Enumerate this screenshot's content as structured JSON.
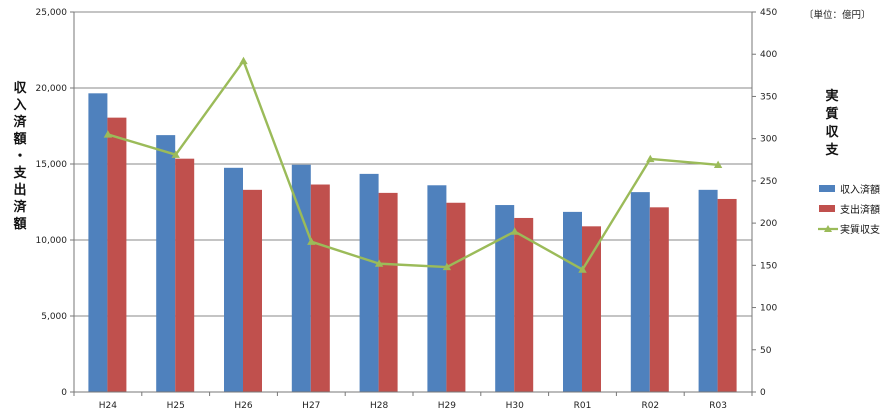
{
  "chart_data": {
    "type": "bar",
    "categories": [
      "H24",
      "H25",
      "H26",
      "H27",
      "H28",
      "H29",
      "H30",
      "R01",
      "R02",
      "R03"
    ],
    "series": [
      {
        "name": "収入済額",
        "kind": "bar",
        "axis": "left",
        "color": "#4f81bd",
        "values": [
          19650,
          16900,
          14750,
          14950,
          14350,
          13600,
          12300,
          11850,
          13150,
          13300
        ]
      },
      {
        "name": "支出済額",
        "kind": "bar",
        "axis": "left",
        "color": "#c0504d",
        "values": [
          18050,
          15350,
          13300,
          13650,
          13100,
          12450,
          11450,
          10900,
          12150,
          12700
        ]
      },
      {
        "name": "実質収支",
        "kind": "line",
        "axis": "right",
        "color": "#9bbb59",
        "marker": "triangle",
        "values": [
          305,
          281,
          392,
          178,
          152,
          148,
          190,
          145,
          276,
          269
        ]
      }
    ],
    "y_left": {
      "label": "収入済額・支出済額",
      "ylim": [
        0,
        25000
      ],
      "ticks": [
        "0",
        "5,000",
        "10,000",
        "15,000",
        "20,000",
        "25,000"
      ]
    },
    "y_right": {
      "label": "実質収支",
      "ylim": [
        0,
        450
      ],
      "ticks": [
        "0",
        "50",
        "100",
        "150",
        "200",
        "250",
        "300",
        "350",
        "400",
        "450"
      ]
    },
    "unit": "〔単位：億円〕",
    "grid": true,
    "legend_position": "right"
  }
}
